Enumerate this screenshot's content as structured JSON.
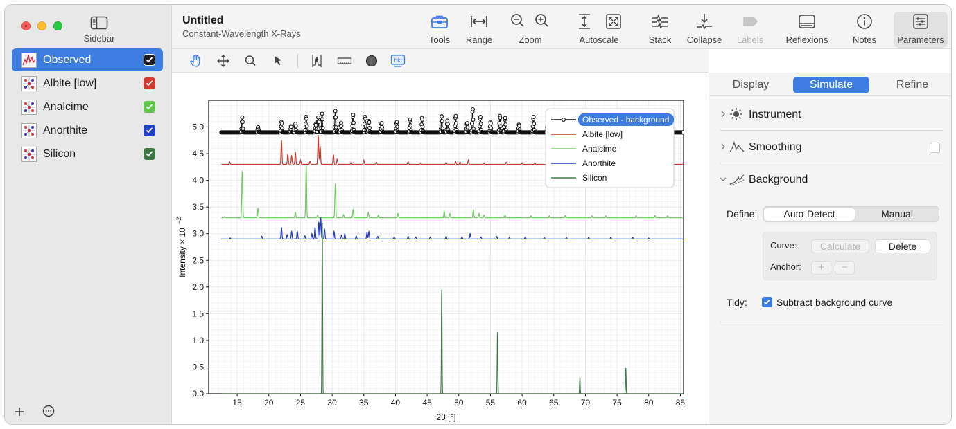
{
  "window": {
    "title": "Untitled",
    "subtitle": "Constant-Wavelength X-Rays"
  },
  "sidebar": {
    "toggle_label": "Sidebar",
    "phases": [
      {
        "name": "Observed",
        "checked": true,
        "check_color": "#1d1d1f",
        "selected": true
      },
      {
        "name": "Albite [low]",
        "checked": true,
        "check_color": "#d13b30",
        "selected": false
      },
      {
        "name": "Analcime",
        "checked": true,
        "check_color": "#5fc649",
        "selected": false
      },
      {
        "name": "Anorthite",
        "checked": true,
        "check_color": "#2140c9",
        "selected": false
      },
      {
        "name": "Silicon",
        "checked": true,
        "check_color": "#3d7a43",
        "selected": false
      }
    ],
    "footer": {
      "add_icon": "plus-icon",
      "more_icon": "ellipsis-circle-icon"
    }
  },
  "toolbar": {
    "tools": "Tools",
    "range": "Range",
    "zoom": "Zoom",
    "autoscale": "Autoscale",
    "stack": "Stack",
    "collapse": "Collapse",
    "labels": "Labels",
    "reflexions": "Reflexions",
    "notes": "Notes",
    "parameters": "Parameters"
  },
  "subtoolbar": {
    "icons": [
      "hand-icon",
      "move-icon",
      "magnifier-icon",
      "pointer-icon",
      "peak-marker-icon",
      "ruler-icon",
      "circle-icon",
      "hkl-icon"
    ],
    "hkl_text": "hkl"
  },
  "chart_data": {
    "type": "line",
    "xlabel": "2θ [°]",
    "ylabel": "Intensity × 10",
    "ylabel_exp": "−2",
    "xlim": [
      10.5,
      85.5
    ],
    "ylim": [
      0,
      5.5
    ],
    "xticks": [
      15,
      20,
      25,
      30,
      35,
      40,
      45,
      50,
      55,
      60,
      65,
      70,
      75,
      80,
      85
    ],
    "yticks": [
      "0.0",
      "0.5",
      "1.0",
      "1.5",
      "2.0",
      "2.5",
      "3.0",
      "3.5",
      "4.0",
      "4.5",
      "5.0"
    ],
    "grid": true,
    "legend_position": "top-right",
    "series": [
      {
        "name": "Observed - background",
        "color": "#111111",
        "baseline": 4.9,
        "marker": "circle",
        "peaks": [
          [
            15.8,
            0.28
          ],
          [
            18.3,
            0.1
          ],
          [
            22.0,
            0.2
          ],
          [
            23.5,
            0.12
          ],
          [
            24.2,
            0.16
          ],
          [
            25.9,
            0.3
          ],
          [
            27.4,
            0.16
          ],
          [
            27.8,
            0.28
          ],
          [
            28.4,
            0.35
          ],
          [
            30.5,
            0.4
          ],
          [
            31.4,
            0.18
          ],
          [
            33.3,
            0.34
          ],
          [
            35.2,
            0.3
          ],
          [
            35.8,
            0.22
          ],
          [
            37.8,
            0.18
          ],
          [
            40.2,
            0.2
          ],
          [
            42.3,
            0.25
          ],
          [
            44.2,
            0.28
          ],
          [
            47.3,
            0.3
          ],
          [
            48.2,
            0.22
          ],
          [
            49.5,
            0.32
          ],
          [
            51.3,
            0.18
          ],
          [
            52.2,
            0.45
          ],
          [
            53.4,
            0.3
          ],
          [
            55.0,
            0.2
          ],
          [
            56.5,
            0.32
          ],
          [
            57.3,
            0.28
          ],
          [
            59.5,
            0.15
          ],
          [
            61.8,
            0.3
          ],
          [
            64.0,
            0.18
          ],
          [
            66.5,
            0.3
          ],
          [
            67.8,
            0.26
          ],
          [
            69.2,
            0.3
          ],
          [
            71.5,
            0.18
          ],
          [
            73.5,
            0.15
          ],
          [
            76.0,
            0.18
          ],
          [
            79.0,
            0.15
          ],
          [
            82.0,
            0.12
          ]
        ]
      },
      {
        "name": "Albite [low]",
        "color": "#c43a2b",
        "baseline": 4.3,
        "peaks": [
          [
            13.8,
            0.05
          ],
          [
            22.0,
            0.45
          ],
          [
            23.0,
            0.2
          ],
          [
            23.6,
            0.16
          ],
          [
            24.2,
            0.22
          ],
          [
            25.0,
            0.08
          ],
          [
            26.5,
            0.06
          ],
          [
            27.8,
            0.55
          ],
          [
            28.1,
            0.35
          ],
          [
            30.2,
            0.18
          ],
          [
            30.8,
            0.1
          ],
          [
            33.0,
            0.05
          ],
          [
            35.0,
            0.08
          ],
          [
            37.0,
            0.04
          ],
          [
            42.0,
            0.05
          ],
          [
            44.0,
            0.03
          ],
          [
            48.0,
            0.04
          ],
          [
            49.5,
            0.06
          ],
          [
            50.2,
            0.05
          ],
          [
            51.5,
            0.08
          ],
          [
            54.0,
            0.03
          ],
          [
            57.5,
            0.04
          ],
          [
            60.0,
            0.03
          ],
          [
            62.0,
            0.03
          ],
          [
            65.0,
            0.03
          ],
          [
            69.0,
            0.02
          ],
          [
            72.0,
            0.02
          ],
          [
            77.0,
            0.02
          ],
          [
            81.0,
            0.02
          ]
        ]
      },
      {
        "name": "Analcime",
        "color": "#6ad15a",
        "baseline": 3.3,
        "peaks": [
          [
            13.0,
            0.02
          ],
          [
            15.8,
            0.88
          ],
          [
            18.3,
            0.18
          ],
          [
            24.2,
            0.1
          ],
          [
            25.9,
            0.98
          ],
          [
            27.7,
            0.05
          ],
          [
            30.5,
            0.64
          ],
          [
            31.8,
            0.06
          ],
          [
            33.3,
            0.15
          ],
          [
            35.7,
            0.1
          ],
          [
            37.3,
            0.05
          ],
          [
            40.4,
            0.08
          ],
          [
            47.7,
            0.12
          ],
          [
            48.6,
            0.08
          ],
          [
            52.3,
            0.15
          ],
          [
            53.2,
            0.08
          ],
          [
            54.0,
            0.05
          ],
          [
            57.3,
            0.05
          ],
          [
            61.4,
            0.04
          ],
          [
            64.3,
            0.04
          ],
          [
            66.8,
            0.04
          ],
          [
            71.0,
            0.04
          ],
          [
            73.2,
            0.04
          ],
          [
            78.0,
            0.04
          ],
          [
            81.0,
            0.04
          ],
          [
            83.0,
            0.04
          ]
        ]
      },
      {
        "name": "Anorthite",
        "color": "#2036c4",
        "baseline": 2.9,
        "peaks": [
          [
            13.9,
            0.02
          ],
          [
            18.9,
            0.05
          ],
          [
            22.0,
            0.22
          ],
          [
            22.9,
            0.08
          ],
          [
            23.6,
            0.14
          ],
          [
            24.5,
            0.14
          ],
          [
            25.7,
            0.06
          ],
          [
            26.8,
            0.1
          ],
          [
            27.3,
            0.22
          ],
          [
            27.9,
            0.32
          ],
          [
            28.2,
            0.4
          ],
          [
            28.8,
            0.18
          ],
          [
            30.3,
            0.14
          ],
          [
            31.5,
            0.08
          ],
          [
            32.0,
            0.1
          ],
          [
            33.8,
            0.06
          ],
          [
            35.5,
            0.12
          ],
          [
            35.8,
            0.14
          ],
          [
            37.2,
            0.05
          ],
          [
            39.8,
            0.04
          ],
          [
            42.0,
            0.05
          ],
          [
            43.2,
            0.04
          ],
          [
            45.5,
            0.04
          ],
          [
            48.0,
            0.05
          ],
          [
            50.5,
            0.04
          ],
          [
            51.8,
            0.1
          ],
          [
            53.5,
            0.04
          ],
          [
            56.0,
            0.05
          ],
          [
            58.0,
            0.03
          ],
          [
            60.5,
            0.04
          ],
          [
            63.5,
            0.03
          ],
          [
            67.0,
            0.03
          ],
          [
            70.5,
            0.03
          ],
          [
            74.0,
            0.03
          ],
          [
            77.5,
            0.03
          ],
          [
            80.0,
            0.02
          ]
        ]
      },
      {
        "name": "Silicon",
        "color": "#3d7a43",
        "baseline": 0.0,
        "peaks": [
          [
            28.44,
            3.2
          ],
          [
            47.3,
            1.95
          ],
          [
            56.12,
            1.15
          ],
          [
            69.13,
            0.3
          ],
          [
            76.38,
            0.48
          ]
        ]
      }
    ]
  },
  "right_panel": {
    "tabs": [
      "Display",
      "Simulate",
      "Refine"
    ],
    "selected_tab": "Simulate",
    "sections": {
      "instrument": "Instrument",
      "smoothing": "Smoothing",
      "background": "Background"
    },
    "background": {
      "define_label": "Define:",
      "define_options": [
        "Auto-Detect",
        "Manual"
      ],
      "define_selected": "Auto-Detect",
      "curve_label": "Curve:",
      "calculate_label": "Calculate",
      "delete_label": "Delete",
      "anchor_label": "Anchor:",
      "add_anchor": "+",
      "remove_anchor": "−",
      "tidy_label": "Tidy:",
      "tidy_option": "Subtract background curve",
      "tidy_checked": true
    }
  },
  "colors": {
    "accent": "#3d7de1"
  }
}
